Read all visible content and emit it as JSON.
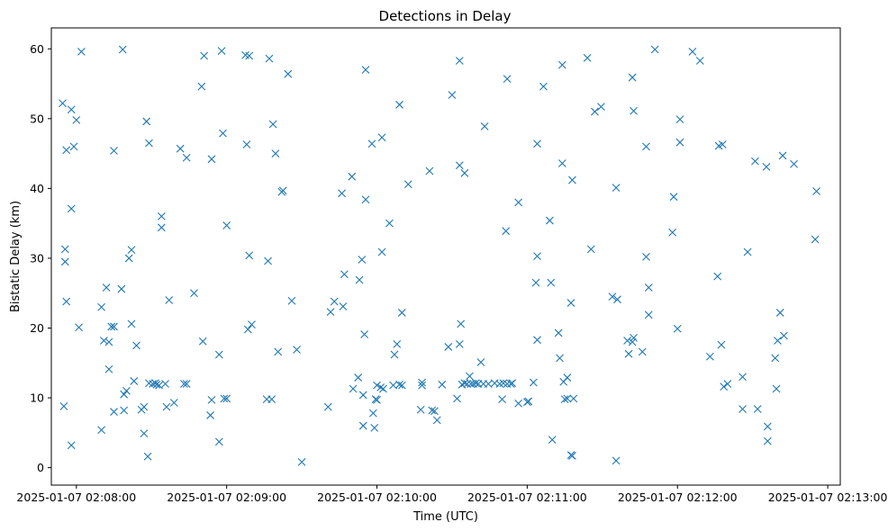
{
  "chart_data": {
    "type": "scatter",
    "title": "Detections in Delay",
    "xlabel": "Time (UTC)",
    "ylabel": "Bistatic Delay (km)",
    "x_axis_type": "time",
    "xlim": [
      "2025-01-07 02:07:50",
      "2025-01-07 02:13:05"
    ],
    "ylim": [
      -2.5,
      63
    ],
    "x_ticks": [
      "2025-01-07 02:08:00",
      "2025-01-07 02:09:00",
      "2025-01-07 02:10:00",
      "2025-01-07 02:11:00",
      "2025-01-07 02:12:00",
      "2025-01-07 02:13:00"
    ],
    "y_ticks": [
      0,
      10,
      20,
      30,
      40,
      50,
      60
    ],
    "grid": false,
    "marker": "x",
    "marker_color": "#1f77b4",
    "points": [
      [
        "02:07:54.5",
        52.2
      ],
      [
        "02:07:55.0",
        8.8
      ],
      [
        "02:07:55.5",
        31.3
      ],
      [
        "02:07:55.5",
        29.5
      ],
      [
        "02:07:56.0",
        45.5
      ],
      [
        "02:07:56.0",
        23.8
      ],
      [
        "02:07:58.0",
        51.3
      ],
      [
        "02:07:58.0",
        37.1
      ],
      [
        "02:07:58.0",
        3.2
      ],
      [
        "02:07:59.0",
        46.0
      ],
      [
        "02:08:00.0",
        49.8
      ],
      [
        "02:08:01.0",
        20.1
      ],
      [
        "02:08:02.0",
        59.6
      ],
      [
        "02:08:10.0",
        23.0
      ],
      [
        "02:08:10.0",
        5.4
      ],
      [
        "02:08:11.0",
        18.2
      ],
      [
        "02:08:12.0",
        25.8
      ],
      [
        "02:08:13.0",
        18.0
      ],
      [
        "02:08:13.0",
        14.1
      ],
      [
        "02:08:14.0",
        20.2
      ],
      [
        "02:08:15.0",
        20.2
      ],
      [
        "02:08:15.0",
        45.4
      ],
      [
        "02:08:15.0",
        8.0
      ],
      [
        "02:08:18.0",
        25.6
      ],
      [
        "02:08:18.5",
        59.9
      ],
      [
        "02:08:19.0",
        10.5
      ],
      [
        "02:08:19.0",
        8.2
      ],
      [
        "02:08:20.0",
        11.0
      ],
      [
        "02:08:21.0",
        30.0
      ],
      [
        "02:08:22.0",
        31.2
      ],
      [
        "02:08:22.0",
        20.6
      ],
      [
        "02:08:23.0",
        12.4
      ],
      [
        "02:08:24.0",
        17.5
      ],
      [
        "02:08:26.0",
        8.3
      ],
      [
        "02:08:27.0",
        8.7
      ],
      [
        "02:08:27.0",
        4.9
      ],
      [
        "02:08:28.0",
        49.6
      ],
      [
        "02:08:28.5",
        1.6
      ],
      [
        "02:08:29.0",
        46.5
      ],
      [
        "02:08:29.0",
        12.1
      ],
      [
        "02:08:30.5",
        12.0
      ],
      [
        "02:08:31.5",
        12.1
      ],
      [
        "02:08:32.0",
        11.9
      ],
      [
        "02:08:33.0",
        11.8
      ],
      [
        "02:08:34.0",
        36.0
      ],
      [
        "02:08:34.0",
        34.4
      ],
      [
        "02:08:35.5",
        12.0
      ],
      [
        "02:08:36.0",
        8.7
      ],
      [
        "02:08:37.0",
        24.0
      ],
      [
        "02:08:39.0",
        9.3
      ],
      [
        "02:08:41.5",
        45.7
      ],
      [
        "02:08:43.0",
        12.0
      ],
      [
        "02:08:44.0",
        12.0
      ],
      [
        "02:08:44.0",
        44.4
      ],
      [
        "02:08:47.0",
        25.0
      ],
      [
        "02:08:50.0",
        54.6
      ],
      [
        "02:08:50.5",
        18.1
      ],
      [
        "02:08:51.0",
        59.0
      ],
      [
        "02:08:53.5",
        7.5
      ],
      [
        "02:08:54.0",
        9.7
      ],
      [
        "02:08:54.0",
        44.2
      ],
      [
        "02:08:57.0",
        16.2
      ],
      [
        "02:08:57.0",
        3.7
      ],
      [
        "02:08:58.0",
        59.7
      ],
      [
        "02:08:58.5",
        47.9
      ],
      [
        "02:08:59.0",
        9.9
      ],
      [
        "02:09:00.0",
        9.9
      ],
      [
        "02:09:00.0",
        34.7
      ],
      [
        "02:09:07.5",
        59.1
      ],
      [
        "02:09:08.0",
        46.3
      ],
      [
        "02:09:08.5",
        19.8
      ],
      [
        "02:09:09.0",
        59.0
      ],
      [
        "02:09:09.0",
        30.4
      ],
      [
        "02:09:10.0",
        20.5
      ],
      [
        "02:09:16.0",
        9.8
      ],
      [
        "02:09:16.5",
        29.6
      ],
      [
        "02:09:17.0",
        58.6
      ],
      [
        "02:09:18.0",
        9.8
      ],
      [
        "02:09:18.5",
        49.2
      ],
      [
        "02:09:19.5",
        45.0
      ],
      [
        "02:09:20.5",
        16.6
      ],
      [
        "02:09:22.0",
        39.5
      ],
      [
        "02:09:22.5",
        39.7
      ],
      [
        "02:09:24.5",
        56.4
      ],
      [
        "02:09:26.0",
        23.9
      ],
      [
        "02:09:28.0",
        16.9
      ],
      [
        "02:09:30.0",
        0.8
      ],
      [
        "02:09:40.5",
        8.7
      ],
      [
        "02:09:41.5",
        22.3
      ],
      [
        "02:09:43.0",
        23.8
      ],
      [
        "02:09:46.0",
        39.3
      ],
      [
        "02:09:46.5",
        23.1
      ],
      [
        "02:09:47.0",
        27.7
      ],
      [
        "02:09:50.0",
        41.7
      ],
      [
        "02:09:50.5",
        11.3
      ],
      [
        "02:09:52.5",
        12.9
      ],
      [
        "02:09:53.0",
        26.9
      ],
      [
        "02:09:54.0",
        29.8
      ],
      [
        "02:09:54.5",
        10.4
      ],
      [
        "02:09:54.5",
        6.0
      ],
      [
        "02:09:55.0",
        19.1
      ],
      [
        "02:09:55.5",
        38.4
      ],
      [
        "02:09:55.5",
        57.0
      ],
      [
        "02:09:58.0",
        46.4
      ],
      [
        "02:09:58.5",
        7.8
      ],
      [
        "02:09:59.0",
        5.7
      ],
      [
        "02:09:59.5",
        9.8
      ],
      [
        "02:10:00.0",
        11.8
      ],
      [
        "02:10:00.0",
        9.7
      ],
      [
        "02:10:01.5",
        11.5
      ],
      [
        "02:10:02.0",
        30.9
      ],
      [
        "02:10:02.0",
        47.3
      ],
      [
        "02:10:02.5",
        11.3
      ],
      [
        "02:10:05.0",
        35.0
      ],
      [
        "02:10:06.5",
        11.8
      ],
      [
        "02:10:07.0",
        16.2
      ],
      [
        "02:10:08.0",
        17.7
      ],
      [
        "02:10:09.0",
        52.0
      ],
      [
        "02:10:09.0",
        11.9
      ],
      [
        "02:10:10.0",
        22.2
      ],
      [
        "02:10:10.0",
        11.8
      ],
      [
        "02:10:12.5",
        40.6
      ],
      [
        "02:10:17.5",
        8.3
      ],
      [
        "02:10:18.0",
        11.8
      ],
      [
        "02:10:18.0",
        12.2
      ],
      [
        "02:10:21.0",
        42.5
      ],
      [
        "02:10:22.0",
        8.2
      ],
      [
        "02:10:23.0",
        8.1
      ],
      [
        "02:10:24.0",
        6.8
      ],
      [
        "02:10:26.0",
        11.9
      ],
      [
        "02:10:28.5",
        17.3
      ],
      [
        "02:10:30.0",
        53.4
      ],
      [
        "02:10:32.0",
        9.9
      ],
      [
        "02:10:33.0",
        43.3
      ],
      [
        "02:10:33.0",
        58.3
      ],
      [
        "02:10:33.0",
        17.7
      ],
      [
        "02:10:33.5",
        20.6
      ],
      [
        "02:10:34.0",
        11.9
      ],
      [
        "02:10:35.0",
        42.2
      ],
      [
        "02:10:35.0",
        12.1
      ],
      [
        "02:10:36.0",
        12.0
      ],
      [
        "02:10:37.0",
        13.1
      ],
      [
        "02:10:37.5",
        12.0
      ],
      [
        "02:10:38.5",
        12.0
      ],
      [
        "02:10:39.5",
        12.1
      ],
      [
        "02:10:40.5",
        12.0
      ],
      [
        "02:10:41.5",
        15.1
      ],
      [
        "02:10:42.5",
        12.0
      ],
      [
        "02:10:43.0",
        48.9
      ],
      [
        "02:10:44.5",
        12.0
      ],
      [
        "02:10:47.0",
        12.1
      ],
      [
        "02:10:49.0",
        12.0
      ],
      [
        "02:10:50.0",
        9.8
      ],
      [
        "02:10:50.5",
        12.1
      ],
      [
        "02:10:51.5",
        33.9
      ],
      [
        "02:10:52.0",
        55.7
      ],
      [
        "02:10:52.0",
        12.0
      ],
      [
        "02:10:53.5",
        12.0
      ],
      [
        "02:10:54.0",
        12.1
      ],
      [
        "02:10:56.5",
        38.0
      ],
      [
        "02:10:56.5",
        9.2
      ],
      [
        "02:11:00.0",
        9.4
      ],
      [
        "02:11:00.5",
        9.5
      ],
      [
        "02:11:02.5",
        12.2
      ],
      [
        "02:11:03.5",
        26.5
      ],
      [
        "02:11:04.0",
        30.3
      ],
      [
        "02:11:04.0",
        46.4
      ],
      [
        "02:11:04.0",
        18.3
      ],
      [
        "02:11:06.5",
        54.6
      ],
      [
        "02:11:09.0",
        35.4
      ],
      [
        "02:11:09.5",
        26.5
      ],
      [
        "02:11:10.0",
        4.0
      ],
      [
        "02:11:12.5",
        19.3
      ],
      [
        "02:11:13.0",
        15.7
      ],
      [
        "02:11:14.0",
        57.7
      ],
      [
        "02:11:14.0",
        43.6
      ],
      [
        "02:11:14.5",
        12.3
      ],
      [
        "02:11:15.0",
        9.8
      ],
      [
        "02:11:16.0",
        9.9
      ],
      [
        "02:11:16.0",
        12.9
      ],
      [
        "02:11:17.5",
        23.6
      ],
      [
        "02:11:17.5",
        1.8
      ],
      [
        "02:11:18.0",
        41.2
      ],
      [
        "02:11:18.0",
        1.7
      ],
      [
        "02:11:18.5",
        9.9
      ],
      [
        "02:11:24.0",
        58.7
      ],
      [
        "02:11:25.5",
        31.3
      ],
      [
        "02:11:27.0",
        51.0
      ],
      [
        "02:11:29.5",
        51.7
      ],
      [
        "02:11:34.0",
        24.5
      ],
      [
        "02:11:35.5",
        40.1
      ],
      [
        "02:11:35.5",
        1.0
      ],
      [
        "02:11:36.0",
        24.1
      ],
      [
        "02:11:40.0",
        18.2
      ],
      [
        "02:11:40.5",
        16.3
      ],
      [
        "02:11:42.0",
        55.9
      ],
      [
        "02:11:42.0",
        18.0
      ],
      [
        "02:11:42.5",
        18.6
      ],
      [
        "02:11:42.5",
        51.1
      ],
      [
        "02:11:46.0",
        16.6
      ],
      [
        "02:11:47.5",
        46.0
      ],
      [
        "02:11:47.5",
        30.2
      ],
      [
        "02:11:48.5",
        25.8
      ],
      [
        "02:11:48.5",
        21.9
      ],
      [
        "02:11:51.0",
        59.9
      ],
      [
        "02:11:58.0",
        33.7
      ],
      [
        "02:11:58.5",
        38.8
      ],
      [
        "02:12:00.0",
        19.9
      ],
      [
        "02:12:01.0",
        49.9
      ],
      [
        "02:12:01.0",
        46.6
      ],
      [
        "02:12:06.0",
        59.6
      ],
      [
        "02:12:09.0",
        58.3
      ],
      [
        "02:12:13.0",
        15.9
      ],
      [
        "02:12:16.0",
        27.4
      ],
      [
        "02:12:16.5",
        46.1
      ],
      [
        "02:12:17.5",
        17.6
      ],
      [
        "02:12:18.0",
        46.3
      ],
      [
        "02:12:18.5",
        11.6
      ],
      [
        "02:12:20.0",
        12.0
      ],
      [
        "02:12:26.0",
        13.0
      ],
      [
        "02:12:26.0",
        8.4
      ],
      [
        "02:12:28.0",
        30.9
      ],
      [
        "02:12:31.0",
        43.9
      ],
      [
        "02:12:32.0",
        8.4
      ],
      [
        "02:12:35.5",
        43.1
      ],
      [
        "02:12:36.0",
        5.9
      ],
      [
        "02:12:36.0",
        3.8
      ],
      [
        "02:12:39.0",
        15.7
      ],
      [
        "02:12:39.5",
        11.3
      ],
      [
        "02:12:40.0",
        18.2
      ],
      [
        "02:12:41.0",
        22.2
      ],
      [
        "02:12:42.0",
        44.7
      ],
      [
        "02:12:42.5",
        18.9
      ],
      [
        "02:12:46.5",
        43.5
      ],
      [
        "02:12:55.0",
        32.7
      ],
      [
        "02:12:55.5",
        39.6
      ]
    ]
  }
}
